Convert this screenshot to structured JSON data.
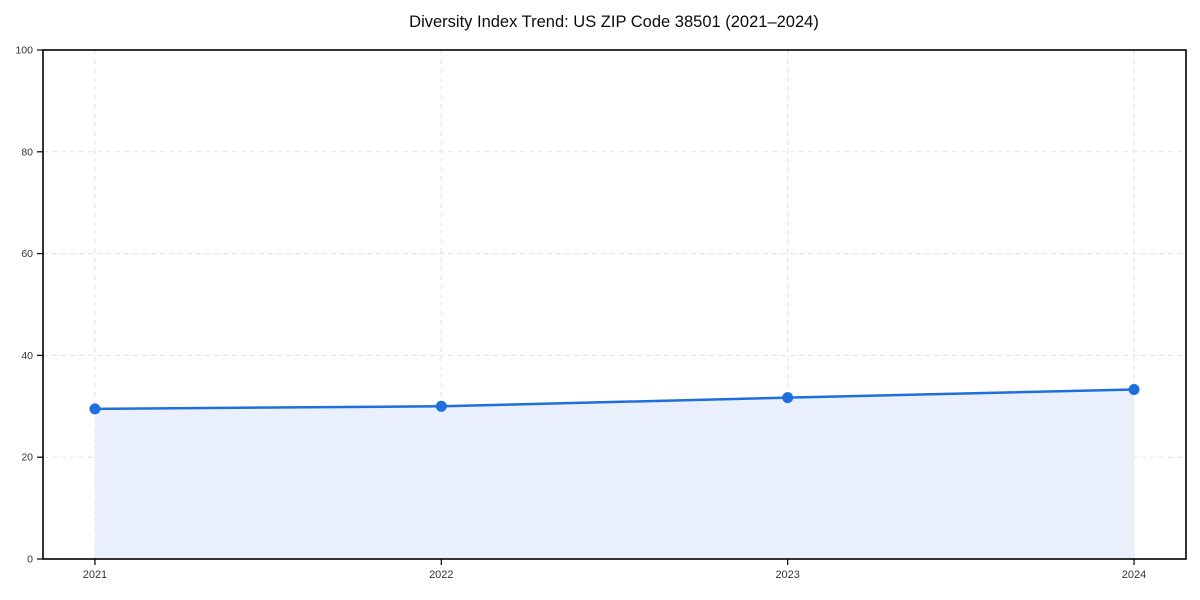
{
  "chart_data": {
    "type": "area",
    "title": "Diversity Index Trend: US ZIP Code 38501 (2021–2024)",
    "categories": [
      "2021",
      "2022",
      "2023",
      "2024"
    ],
    "x": [
      2021,
      2022,
      2023,
      2024
    ],
    "series": [
      {
        "name": "Diversity Index",
        "values": [
          29.5,
          30.0,
          31.7,
          33.3
        ]
      }
    ],
    "xlabel": "",
    "ylabel": "",
    "xlim": [
      2020.85,
      2024.15
    ],
    "ylim": [
      0,
      100
    ],
    "xticks": [
      2021,
      2022,
      2023,
      2024
    ],
    "yticks": [
      0,
      20,
      40,
      60,
      80,
      100
    ],
    "grid": true,
    "grid_line_style": "dashed",
    "legend_position": "none",
    "marker": "circle",
    "colors": {
      "line": "#1e6fdb",
      "marker": "#1e6fdb",
      "fill": "#e9f0fc",
      "grid": "#e2e2e2",
      "spine": "#000000",
      "tick_label": "#333333",
      "title": "#0b0b0b",
      "background": "#ffffff"
    }
  }
}
